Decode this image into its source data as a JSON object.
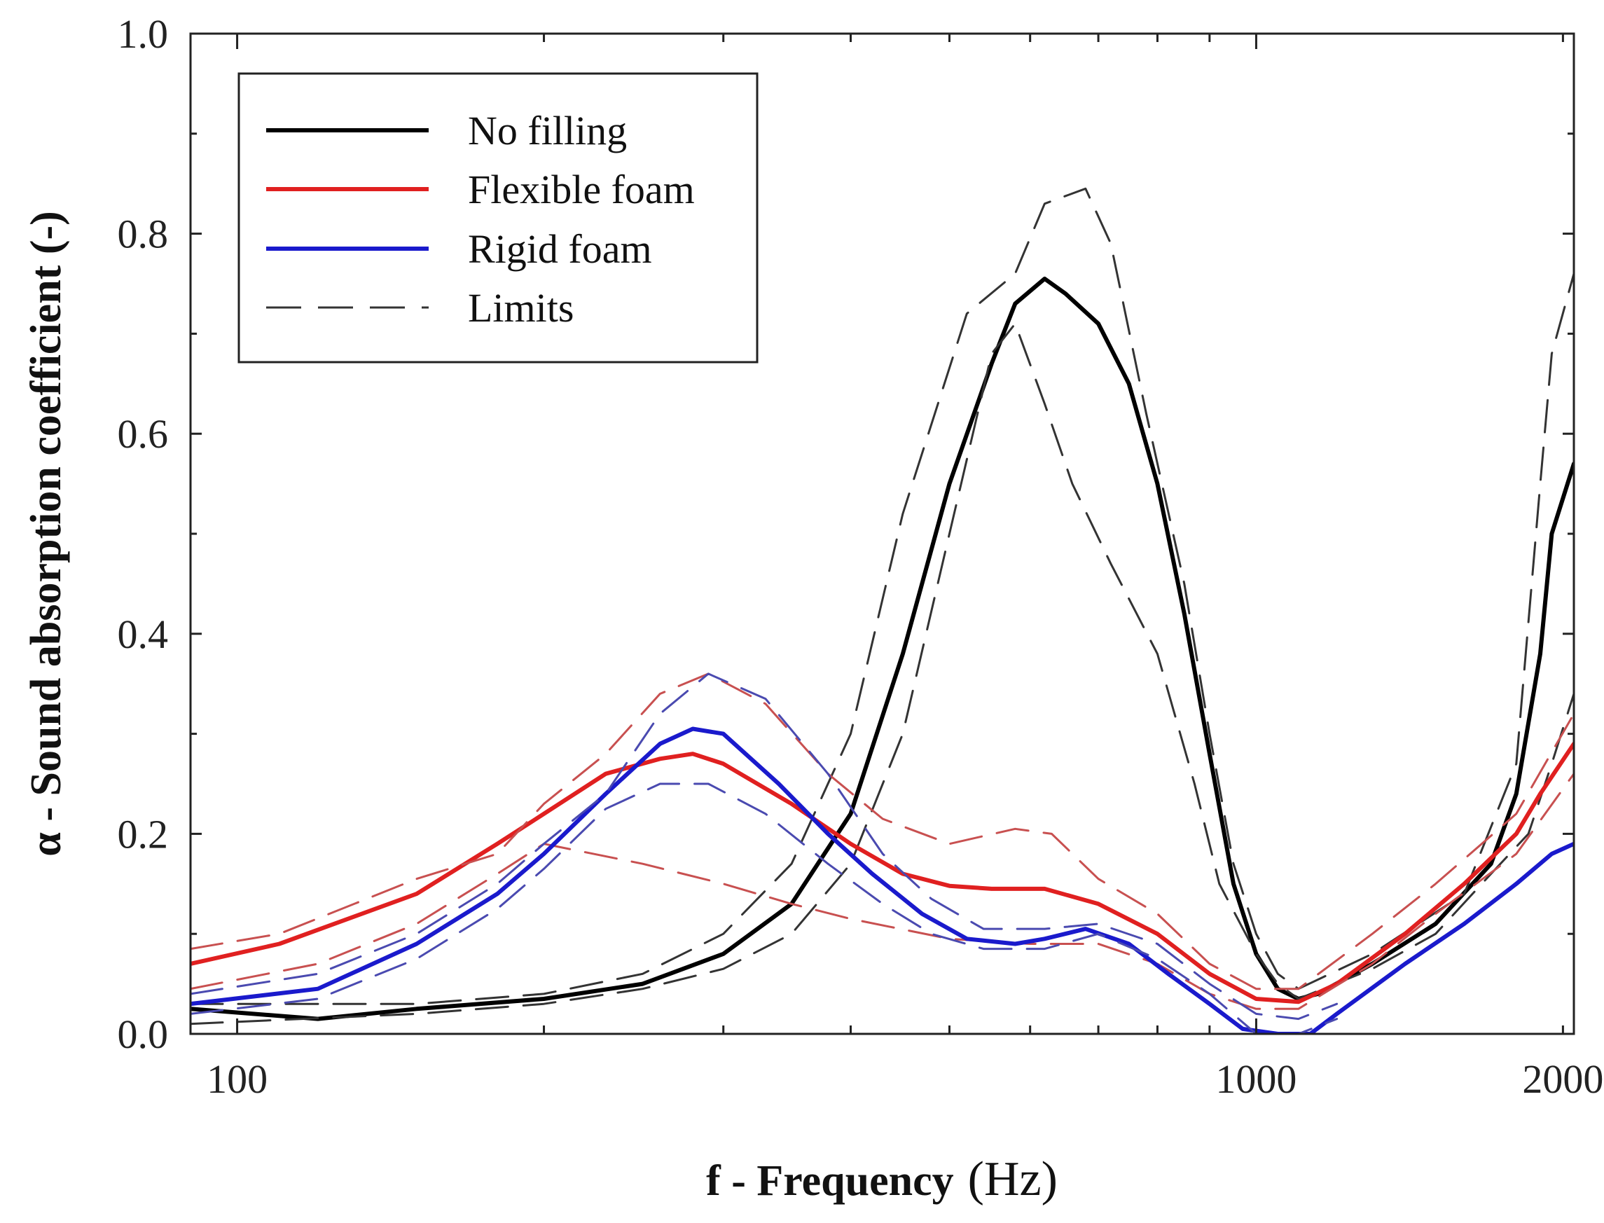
{
  "chart_data": {
    "type": "line",
    "title": "",
    "xlabel": "f - Frequency",
    "xlabel_unit": "(Hz)",
    "ylabel": "α - Sound absorption coefficient (-)",
    "xscale": "log",
    "xlim": [
      90,
      2050
    ],
    "ylim": [
      0,
      1.0
    ],
    "x_ticks": [
      100,
      1000,
      2000
    ],
    "x_tick_labels": [
      "100",
      "1000",
      "2000"
    ],
    "y_ticks": [
      0,
      0.2,
      0.4,
      0.6,
      0.8,
      1.0
    ],
    "y_tick_labels": [
      "0.0",
      "0.2",
      "0.4",
      "0.6",
      "0.8",
      "1.0"
    ],
    "legend_position": "top-left",
    "legend": [
      {
        "label": "No filling",
        "color": "#000000",
        "dash": "solid"
      },
      {
        "label": "Flexible foam",
        "color": "#e02020",
        "dash": "solid"
      },
      {
        "label": "Rigid foam",
        "color": "#1a1acc",
        "dash": "solid"
      },
      {
        "label": "Limits",
        "color": "#333333",
        "dash": "dashed"
      }
    ],
    "series": [
      {
        "name": "No filling",
        "color": "#000000",
        "style": "solid",
        "width": 6,
        "points": [
          [
            90,
            0.025
          ],
          [
            120,
            0.015
          ],
          [
            150,
            0.025
          ],
          [
            200,
            0.035
          ],
          [
            250,
            0.05
          ],
          [
            300,
            0.08
          ],
          [
            350,
            0.13
          ],
          [
            400,
            0.22
          ],
          [
            450,
            0.38
          ],
          [
            500,
            0.55
          ],
          [
            550,
            0.67
          ],
          [
            580,
            0.73
          ],
          [
            620,
            0.755
          ],
          [
            650,
            0.74
          ],
          [
            700,
            0.71
          ],
          [
            750,
            0.65
          ],
          [
            800,
            0.55
          ],
          [
            850,
            0.42
          ],
          [
            900,
            0.28
          ],
          [
            950,
            0.15
          ],
          [
            1000,
            0.08
          ],
          [
            1050,
            0.045
          ],
          [
            1100,
            0.035
          ],
          [
            1150,
            0.04
          ],
          [
            1300,
            0.07
          ],
          [
            1500,
            0.11
          ],
          [
            1700,
            0.17
          ],
          [
            1800,
            0.24
          ],
          [
            1900,
            0.38
          ],
          [
            1950,
            0.5
          ],
          [
            2050,
            0.57
          ]
        ]
      },
      {
        "name": "No filling limit upper",
        "color": "#333333",
        "style": "dashed",
        "width": 3,
        "points": [
          [
            90,
            0.03
          ],
          [
            150,
            0.03
          ],
          [
            200,
            0.04
          ],
          [
            250,
            0.06
          ],
          [
            300,
            0.1
          ],
          [
            350,
            0.17
          ],
          [
            400,
            0.3
          ],
          [
            450,
            0.52
          ],
          [
            520,
            0.72
          ],
          [
            580,
            0.76
          ],
          [
            620,
            0.83
          ],
          [
            680,
            0.845
          ],
          [
            720,
            0.79
          ],
          [
            780,
            0.62
          ],
          [
            850,
            0.45
          ],
          [
            900,
            0.3
          ],
          [
            950,
            0.17
          ],
          [
            1000,
            0.1
          ],
          [
            1050,
            0.06
          ],
          [
            1100,
            0.045
          ],
          [
            1300,
            0.08
          ],
          [
            1600,
            0.14
          ],
          [
            1800,
            0.27
          ],
          [
            1900,
            0.55
          ],
          [
            1950,
            0.68
          ],
          [
            2050,
            0.76
          ]
        ]
      },
      {
        "name": "No filling limit lower",
        "color": "#333333",
        "style": "dashed",
        "width": 3,
        "points": [
          [
            90,
            0.01
          ],
          [
            150,
            0.02
          ],
          [
            200,
            0.03
          ],
          [
            250,
            0.045
          ],
          [
            300,
            0.065
          ],
          [
            350,
            0.1
          ],
          [
            400,
            0.17
          ],
          [
            450,
            0.3
          ],
          [
            500,
            0.5
          ],
          [
            550,
            0.68
          ],
          [
            580,
            0.71
          ],
          [
            620,
            0.63
          ],
          [
            660,
            0.55
          ],
          [
            720,
            0.47
          ],
          [
            800,
            0.38
          ],
          [
            870,
            0.25
          ],
          [
            920,
            0.15
          ],
          [
            1000,
            0.08
          ],
          [
            1050,
            0.05
          ],
          [
            1100,
            0.035
          ],
          [
            1300,
            0.065
          ],
          [
            1500,
            0.1
          ],
          [
            1700,
            0.16
          ],
          [
            1850,
            0.2
          ],
          [
            1950,
            0.27
          ],
          [
            2050,
            0.34
          ]
        ]
      },
      {
        "name": "Flexible foam",
        "color": "#e02020",
        "style": "solid",
        "width": 6,
        "points": [
          [
            90,
            0.07
          ],
          [
            110,
            0.09
          ],
          [
            150,
            0.14
          ],
          [
            180,
            0.19
          ],
          [
            200,
            0.22
          ],
          [
            230,
            0.26
          ],
          [
            260,
            0.275
          ],
          [
            280,
            0.28
          ],
          [
            300,
            0.27
          ],
          [
            350,
            0.23
          ],
          [
            400,
            0.19
          ],
          [
            450,
            0.16
          ],
          [
            500,
            0.148
          ],
          [
            550,
            0.145
          ],
          [
            620,
            0.145
          ],
          [
            700,
            0.13
          ],
          [
            800,
            0.1
          ],
          [
            900,
            0.06
          ],
          [
            1000,
            0.035
          ],
          [
            1100,
            0.032
          ],
          [
            1200,
            0.05
          ],
          [
            1400,
            0.1
          ],
          [
            1600,
            0.15
          ],
          [
            1800,
            0.2
          ],
          [
            1900,
            0.24
          ],
          [
            2050,
            0.29
          ]
        ]
      },
      {
        "name": "Flexible foam limit upper",
        "color": "#c85050",
        "style": "dashed",
        "width": 3,
        "points": [
          [
            90,
            0.085
          ],
          [
            110,
            0.1
          ],
          [
            150,
            0.155
          ],
          [
            180,
            0.18
          ],
          [
            200,
            0.23
          ],
          [
            230,
            0.28
          ],
          [
            260,
            0.34
          ],
          [
            290,
            0.36
          ],
          [
            330,
            0.33
          ],
          [
            380,
            0.26
          ],
          [
            430,
            0.215
          ],
          [
            500,
            0.19
          ],
          [
            580,
            0.205
          ],
          [
            630,
            0.2
          ],
          [
            700,
            0.155
          ],
          [
            800,
            0.12
          ],
          [
            900,
            0.07
          ],
          [
            1000,
            0.045
          ],
          [
            1100,
            0.045
          ],
          [
            1300,
            0.1
          ],
          [
            1500,
            0.15
          ],
          [
            1800,
            0.22
          ],
          [
            2050,
            0.32
          ]
        ]
      },
      {
        "name": "Flexible foam limit lower",
        "color": "#c85050",
        "style": "dashed",
        "width": 3,
        "points": [
          [
            90,
            0.045
          ],
          [
            120,
            0.07
          ],
          [
            150,
            0.11
          ],
          [
            180,
            0.16
          ],
          [
            200,
            0.19
          ],
          [
            250,
            0.17
          ],
          [
            300,
            0.15
          ],
          [
            350,
            0.13
          ],
          [
            400,
            0.115
          ],
          [
            500,
            0.095
          ],
          [
            600,
            0.09
          ],
          [
            700,
            0.09
          ],
          [
            800,
            0.07
          ],
          [
            900,
            0.04
          ],
          [
            1000,
            0.025
          ],
          [
            1100,
            0.025
          ],
          [
            1300,
            0.07
          ],
          [
            1500,
            0.12
          ],
          [
            1800,
            0.18
          ],
          [
            2050,
            0.26
          ]
        ]
      },
      {
        "name": "Rigid foam",
        "color": "#1a1acc",
        "style": "solid",
        "width": 6,
        "points": [
          [
            90,
            0.03
          ],
          [
            120,
            0.045
          ],
          [
            150,
            0.09
          ],
          [
            180,
            0.14
          ],
          [
            200,
            0.18
          ],
          [
            230,
            0.24
          ],
          [
            260,
            0.29
          ],
          [
            280,
            0.305
          ],
          [
            300,
            0.3
          ],
          [
            340,
            0.25
          ],
          [
            380,
            0.2
          ],
          [
            420,
            0.16
          ],
          [
            470,
            0.12
          ],
          [
            520,
            0.095
          ],
          [
            580,
            0.09
          ],
          [
            620,
            0.095
          ],
          [
            680,
            0.105
          ],
          [
            750,
            0.09
          ],
          [
            820,
            0.06
          ],
          [
            900,
            0.03
          ],
          [
            970,
            0.005
          ],
          [
            1050,
            0.0
          ],
          [
            1130,
            0.0
          ],
          [
            1200,
            0.02
          ],
          [
            1400,
            0.07
          ],
          [
            1600,
            0.11
          ],
          [
            1800,
            0.15
          ],
          [
            1950,
            0.18
          ],
          [
            2050,
            0.19
          ]
        ]
      },
      {
        "name": "Rigid foam limit upper",
        "color": "#4a4ab0",
        "style": "dashed",
        "width": 3,
        "points": [
          [
            90,
            0.04
          ],
          [
            120,
            0.06
          ],
          [
            150,
            0.1
          ],
          [
            180,
            0.15
          ],
          [
            200,
            0.19
          ],
          [
            230,
            0.24
          ],
          [
            260,
            0.32
          ],
          [
            290,
            0.36
          ],
          [
            330,
            0.335
          ],
          [
            380,
            0.26
          ],
          [
            430,
            0.18
          ],
          [
            480,
            0.135
          ],
          [
            540,
            0.105
          ],
          [
            620,
            0.105
          ],
          [
            700,
            0.11
          ],
          [
            800,
            0.09
          ],
          [
            900,
            0.05
          ],
          [
            1000,
            0.02
          ],
          [
            1100,
            0.015
          ],
          [
            1200,
            0.03
          ]
        ]
      },
      {
        "name": "Rigid foam limit lower",
        "color": "#4a4ab0",
        "style": "dashed",
        "width": 3,
        "points": [
          [
            90,
            0.02
          ],
          [
            120,
            0.035
          ],
          [
            150,
            0.075
          ],
          [
            180,
            0.125
          ],
          [
            200,
            0.165
          ],
          [
            230,
            0.225
          ],
          [
            260,
            0.25
          ],
          [
            290,
            0.25
          ],
          [
            330,
            0.22
          ],
          [
            380,
            0.17
          ],
          [
            430,
            0.13
          ],
          [
            480,
            0.1
          ],
          [
            540,
            0.085
          ],
          [
            620,
            0.085
          ],
          [
            700,
            0.1
          ],
          [
            800,
            0.075
          ],
          [
            900,
            0.04
          ],
          [
            1000,
            0.0
          ],
          [
            1100,
            0.0
          ],
          [
            1200,
            0.015
          ]
        ]
      }
    ]
  }
}
